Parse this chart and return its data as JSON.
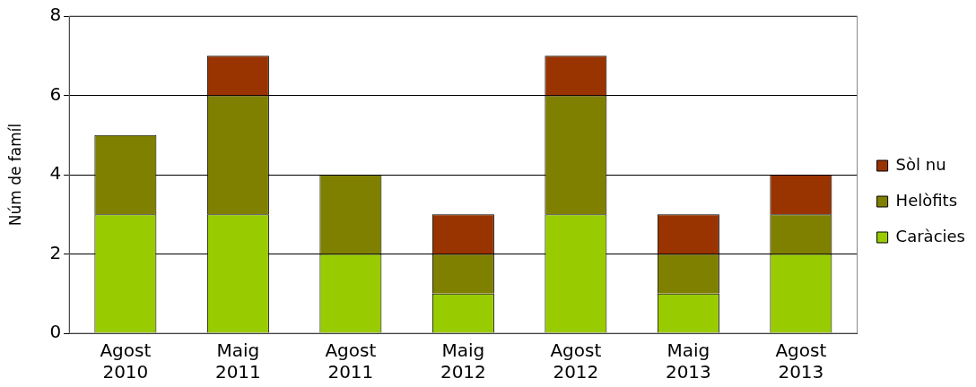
{
  "chart_data": {
    "type": "bar",
    "stacked": true,
    "ylabel": "Núm de famíl",
    "categories": [
      "Agost 2010",
      "Maig 2011",
      "Agost 2011",
      "Maig 2012",
      "Agost 2012",
      "Maig 2013",
      "Agost 2013"
    ],
    "series": [
      {
        "name": "Caràcies",
        "color": "#99cc00",
        "values": [
          3,
          3,
          2,
          1,
          3,
          1,
          2
        ]
      },
      {
        "name": "Helòfits",
        "color": "#808000",
        "values": [
          2,
          3,
          2,
          1,
          3,
          1,
          1
        ]
      },
      {
        "name": "Sòl nu",
        "color": "#993300",
        "values": [
          null,
          1,
          null,
          1,
          1,
          1,
          1
        ]
      }
    ],
    "ylim": [
      0,
      8
    ],
    "yticks": [
      0,
      2,
      4,
      6,
      8
    ],
    "grid": "y",
    "legend": "right"
  }
}
